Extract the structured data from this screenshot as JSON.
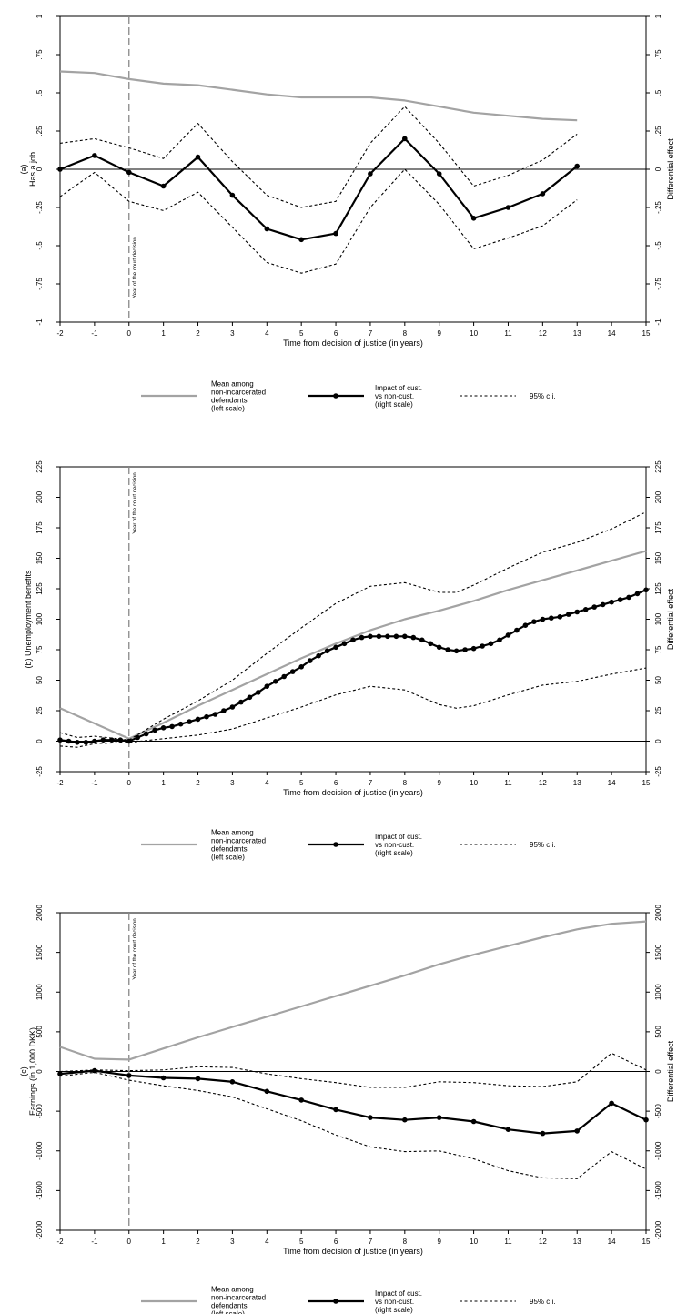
{
  "chart_data": [
    {
      "type": "line",
      "ylabel": "(a)\nHas a job",
      "y2label": "Differential effect",
      "xlabel": "Time from decision of justice (in years)",
      "xlim": [
        -2,
        15
      ],
      "ylim": [
        -1,
        1
      ],
      "xticks": [
        -2,
        -1,
        0,
        1,
        2,
        3,
        4,
        5,
        6,
        7,
        8,
        9,
        10,
        11,
        12,
        13,
        14,
        15
      ],
      "yticks": [
        "-1",
        "-.75",
        "-.5",
        "-.25",
        "0",
        ".25",
        ".5",
        ".75",
        "1"
      ],
      "vline_label": "Year of the court decision",
      "series": [
        {
          "name": "Mean among non-incarcerated defendants (left scale)",
          "style": "mean",
          "x": [
            -2,
            -1,
            0,
            1,
            2,
            3,
            4,
            5,
            6,
            7,
            8,
            9,
            10,
            11,
            12,
            13
          ],
          "y": [
            0.64,
            0.63,
            0.59,
            0.56,
            0.55,
            0.52,
            0.49,
            0.47,
            0.47,
            0.47,
            0.45,
            0.41,
            0.37,
            0.35,
            0.33,
            0.32
          ]
        },
        {
          "name": "Impact of cust. vs non-cust. (right scale)",
          "style": "impact",
          "x": [
            -2,
            -1,
            0,
            1,
            2,
            3,
            4,
            5,
            6,
            7,
            8,
            9,
            10,
            11,
            12,
            13
          ],
          "y": [
            0.0,
            0.09,
            -0.02,
            -0.11,
            0.08,
            -0.17,
            -0.39,
            -0.46,
            -0.42,
            -0.03,
            0.2,
            -0.03,
            -0.32,
            -0.25,
            -0.16,
            0.02
          ]
        },
        {
          "name": "95% c.i.",
          "style": "ci",
          "x": [
            -2,
            -1,
            0,
            1,
            2,
            3,
            4,
            5,
            6,
            7,
            8,
            9,
            10,
            11,
            12,
            13
          ],
          "y": [
            0.17,
            0.2,
            0.14,
            0.07,
            0.3,
            0.05,
            -0.17,
            -0.25,
            -0.21,
            0.17,
            0.41,
            0.17,
            -0.11,
            -0.04,
            0.06,
            0.23
          ]
        },
        {
          "name": "95% c.i.",
          "style": "ci",
          "x": [
            -2,
            -1,
            0,
            1,
            2,
            3,
            4,
            5,
            6,
            7,
            8,
            9,
            10,
            11,
            12,
            13
          ],
          "y": [
            -0.18,
            -0.02,
            -0.21,
            -0.27,
            -0.15,
            -0.38,
            -0.61,
            -0.68,
            -0.62,
            -0.25,
            0.0,
            -0.23,
            -0.52,
            -0.45,
            -0.37,
            -0.2
          ]
        }
      ],
      "legend": {
        "mean": "Mean among\nnon-incarcerated\ndefendants\n(left scale)",
        "impact": "Impact of cust.\nvs non-cust.\n(right scale)",
        "ci": "95% c.i."
      }
    },
    {
      "type": "line",
      "ylabel": "(b) Unemployment benefits",
      "y2label": "Differential effect",
      "xlabel": "Time from decision of justice (in years)",
      "xlim": [
        -2,
        15
      ],
      "ylim": [
        -25,
        225
      ],
      "xticks": [
        -2,
        -1,
        0,
        1,
        2,
        3,
        4,
        5,
        6,
        7,
        8,
        9,
        10,
        11,
        12,
        13,
        14,
        15
      ],
      "yticks": [
        "-25",
        "0",
        "25",
        "50",
        "75",
        "100",
        "125",
        "150",
        "175",
        "200",
        "225"
      ],
      "vline_label": "Year of the court decision",
      "series": [
        {
          "name": "Mean among non-incarcerated defendants (left scale)",
          "style": "mean",
          "x": [
            -2,
            0,
            1,
            2,
            3,
            4,
            5,
            6,
            7,
            8,
            9,
            10,
            11,
            12,
            13,
            14,
            15
          ],
          "y": [
            27,
            2,
            15,
            29,
            42,
            55,
            68,
            80,
            91,
            100,
            107,
            115,
            124,
            132,
            140,
            148,
            156
          ]
        },
        {
          "name": "Impact of cust. vs non-cust. (right scale)",
          "style": "impact",
          "x": [
            -2,
            -1.75,
            -1.5,
            -1.25,
            -1,
            -0.75,
            -0.5,
            -0.25,
            0,
            0.25,
            0.5,
            0.75,
            1,
            1.25,
            1.5,
            1.75,
            2,
            2.25,
            2.5,
            2.75,
            3,
            3.25,
            3.5,
            3.75,
            4,
            4.25,
            4.5,
            4.75,
            5,
            5.25,
            5.5,
            5.75,
            6,
            6.25,
            6.5,
            6.75,
            7,
            7.25,
            7.5,
            7.75,
            8,
            8.25,
            8.5,
            8.75,
            9,
            9.25,
            9.5,
            9.75,
            10,
            10.25,
            10.5,
            10.75,
            11,
            11.25,
            11.5,
            11.75,
            12,
            12.25,
            12.5,
            12.75,
            13,
            13.25,
            13.5,
            13.75,
            14,
            14.25,
            14.5,
            14.75,
            15
          ],
          "y": [
            1,
            0,
            -1,
            -1,
            0,
            1,
            1,
            1,
            0,
            3,
            6,
            9,
            11,
            12,
            14,
            16,
            18,
            20,
            22,
            25,
            28,
            32,
            36,
            40,
            45,
            49,
            53,
            57,
            61,
            66,
            70,
            74,
            77,
            80,
            83,
            85,
            86,
            86,
            86,
            86,
            86,
            85,
            83,
            80,
            77,
            75,
            74,
            75,
            76,
            78,
            80,
            83,
            87,
            91,
            95,
            98,
            100,
            101,
            102,
            104,
            106,
            108,
            110,
            112,
            114,
            116,
            118,
            121,
            124
          ]
        },
        {
          "name": "95% c.i.",
          "style": "ci",
          "x": [
            -2,
            -1.5,
            -1,
            0,
            1,
            2,
            3,
            4,
            5,
            6,
            7,
            8,
            9,
            9.5,
            10,
            11,
            12,
            13,
            14,
            15
          ],
          "y": [
            7,
            3,
            4,
            1,
            18,
            33,
            50,
            72,
            93,
            113,
            127,
            130,
            122,
            122,
            128,
            142,
            155,
            163,
            174,
            188
          ]
        },
        {
          "name": "95% c.i.",
          "style": "ci",
          "x": [
            -2,
            -1.5,
            -1,
            0,
            1,
            2,
            3,
            4,
            5,
            6,
            7,
            8,
            9,
            9.5,
            10,
            11,
            12,
            13,
            14,
            15
          ],
          "y": [
            -4,
            -5,
            -2,
            -1,
            2,
            5,
            10,
            19,
            28,
            38,
            45,
            42,
            30,
            27,
            29,
            38,
            46,
            49,
            55,
            60
          ]
        }
      ],
      "legend": {
        "mean": "Mean among\nnon-incarcerated\ndefendants\n(left scale)",
        "impact": "Impact of cust.\nvs non-cust.\n(right scale)",
        "ci": "95% c.i."
      }
    },
    {
      "type": "line",
      "ylabel": "(c)\nEarnings (in 1,000 DKK)",
      "y2label": "Differential effect",
      "xlabel": "Time from decision of justice (in years)",
      "xlim": [
        -2,
        15
      ],
      "ylim": [
        -2000,
        2000
      ],
      "xticks": [
        -2,
        -1,
        0,
        1,
        2,
        3,
        4,
        5,
        6,
        7,
        8,
        9,
        10,
        11,
        12,
        13,
        14,
        15
      ],
      "yticks": [
        "-2000",
        "-1500",
        "-1000",
        "-500",
        "0",
        "500",
        "1000",
        "1500",
        "2000"
      ],
      "vline_label": "Year of the court decision",
      "series": [
        {
          "name": "Mean among non-incarcerated defendants (left scale)",
          "style": "mean",
          "x": [
            -2,
            -1,
            0,
            1,
            2,
            3,
            4,
            5,
            6,
            7,
            8,
            9,
            10,
            11,
            12,
            13,
            14,
            15
          ],
          "y": [
            310,
            160,
            150,
            290,
            430,
            560,
            690,
            820,
            950,
            1080,
            1210,
            1350,
            1470,
            1580,
            1690,
            1790,
            1860,
            1890
          ]
        },
        {
          "name": "Impact of cust. vs non-cust. (right scale)",
          "style": "impact",
          "x": [
            -2,
            -1,
            0,
            1,
            2,
            3,
            4,
            5,
            6,
            7,
            8,
            9,
            10,
            11,
            12,
            13,
            14,
            15
          ],
          "y": [
            -30,
            10,
            -50,
            -80,
            -90,
            -130,
            -250,
            -360,
            -480,
            -580,
            -610,
            -580,
            -630,
            -730,
            -780,
            -750,
            -400,
            -610
          ]
        },
        {
          "name": "95% c.i.",
          "style": "ci",
          "x": [
            -2,
            -1,
            0,
            1,
            2,
            3,
            4,
            5,
            6,
            7,
            8,
            9,
            10,
            11,
            12,
            13,
            14,
            15
          ],
          "y": [
            0,
            20,
            10,
            20,
            60,
            50,
            -30,
            -90,
            -140,
            -200,
            -200,
            -130,
            -140,
            -180,
            -190,
            -130,
            230,
            20
          ]
        },
        {
          "name": "95% c.i.",
          "style": "ci",
          "x": [
            -2,
            -1,
            0,
            1,
            2,
            3,
            4,
            5,
            6,
            7,
            8,
            9,
            10,
            11,
            12,
            13,
            14,
            15
          ],
          "y": [
            -60,
            -10,
            -110,
            -180,
            -240,
            -320,
            -470,
            -620,
            -800,
            -950,
            -1010,
            -1000,
            -1100,
            -1250,
            -1340,
            -1350,
            -1010,
            -1230
          ]
        }
      ],
      "legend": {
        "mean": "Mean among\nnon-incarcerated\ndefendants\n(left scale)",
        "impact": "Impact of cust.\nvs non-cust.\n(right scale)",
        "ci": "95% c.i."
      }
    }
  ]
}
